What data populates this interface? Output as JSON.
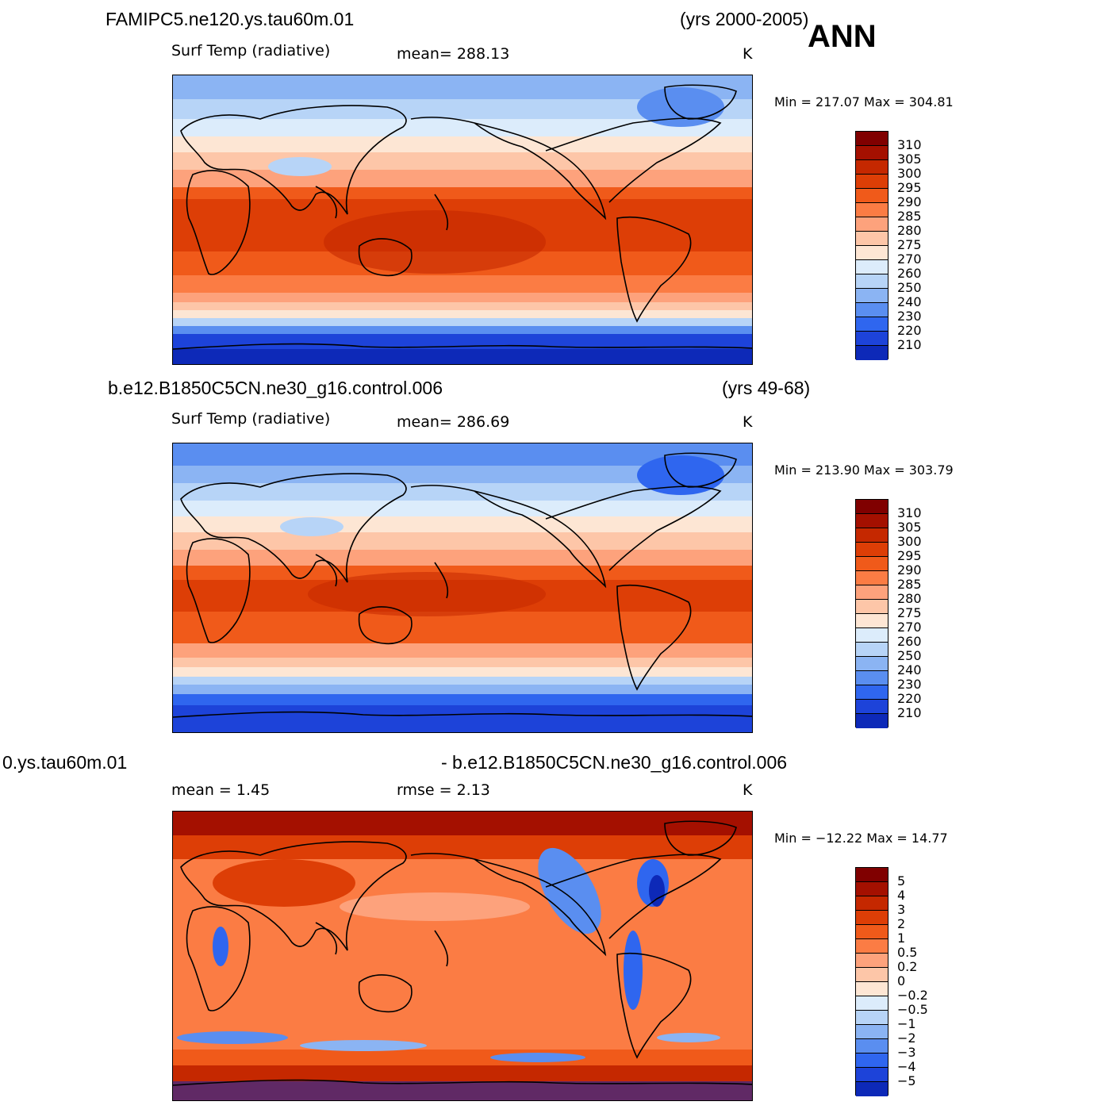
{
  "header": {
    "season": "ANN"
  },
  "panels": [
    {
      "title_left": "FAMIPC5.ne120.ys.tau60m.01",
      "title_right": "(yrs 2000-2005)",
      "subtitle_left": "Surf Temp (radiative)",
      "subtitle_mid": "mean=  288.13",
      "units": "K",
      "minmax": "Min  =  217.07  Max  =  304.81",
      "colorbar_labels": [
        "310",
        "305",
        "300",
        "295",
        "290",
        "285",
        "280",
        "275",
        "270",
        "260",
        "250",
        "240",
        "230",
        "220",
        "210"
      ]
    },
    {
      "title_left": "b.e12.B1850C5CN.ne30_g16.control.006",
      "title_right": "(yrs 49-68)",
      "subtitle_left": "Surf Temp (radiative)",
      "subtitle_mid": "mean=  286.69",
      "units": "K",
      "minmax": "Min  =  213.90  Max  =  303.79",
      "colorbar_labels": [
        "310",
        "305",
        "300",
        "295",
        "290",
        "285",
        "280",
        "275",
        "270",
        "260",
        "250",
        "240",
        "230",
        "220",
        "210"
      ]
    },
    {
      "title_left": "0.ys.tau60m.01",
      "title_right": "- b.e12.B1850C5CN.ne30_g16.control.006",
      "subtitle_left": "mean  =     1.45",
      "subtitle_mid": "rmse  =     2.13",
      "units": "K",
      "minmax": "Min  =  −12.22  Max  =    14.77",
      "colorbar_labels": [
        "5",
        "4",
        "3",
        "2",
        "1",
        "0.5",
        "0.2",
        "0",
        "−0.2",
        "−0.5",
        "−1",
        "−2",
        "−3",
        "−4",
        "−5"
      ]
    }
  ],
  "colors": {
    "abs_scale": [
      "#800000",
      "#a41000",
      "#c52800",
      "#dd3e06",
      "#f05a1a",
      "#fb7c44",
      "#fda27c",
      "#fdc6a8",
      "#fde6d4",
      "#dcecfb",
      "#b7d4f7",
      "#8bb4f3",
      "#5a8ef0",
      "#2f66ef",
      "#1d43d9",
      "#0d29b8",
      "#021593"
    ],
    "diff_scale": [
      "#800000",
      "#a41000",
      "#c52800",
      "#dd3e06",
      "#f05a1a",
      "#fb7c44",
      "#fda27c",
      "#fdc6a8",
      "#fde6d4",
      "#dcecfb",
      "#b7d4f7",
      "#8bb4f3",
      "#5a8ef0",
      "#2f66ef",
      "#1d43d9",
      "#0d29b8",
      "#021593"
    ]
  }
}
